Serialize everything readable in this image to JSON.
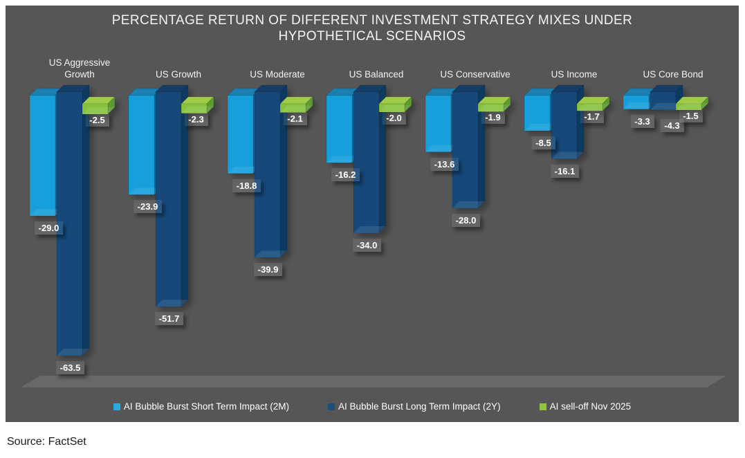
{
  "page": {
    "background": "#ffffff",
    "source_note": "Source: FactSet"
  },
  "panel": {
    "background": "#565656",
    "floor_color": "#686868"
  },
  "chart_data": {
    "type": "bar",
    "effect": "3d-clustered-column",
    "title": "PERCENTAGE RETURN OF DIFFERENT INVESTMENT STRATEGY MIXES UNDER HYPOTHETICAL SCENARIOS",
    "title_lines": [
      "PERCENTAGE RETURN OF DIFFERENT INVESTMENT STRATEGY MIXES UNDER",
      "HYPOTHETICAL SCENARIOS"
    ],
    "categories": [
      "US Aggressive Growth",
      "US Growth",
      "US Moderate",
      "US Balanced",
      "US Conservative",
      "US Income",
      "US Core Bond"
    ],
    "series": [
      {
        "name": "AI Bubble Burst Short Term Impact (2M)",
        "legend_color": "#2BA9E1",
        "face_colors": {
          "front": "#149FDB",
          "top": "#1B7FB1",
          "side": "#0E6CA0"
        },
        "values": [
          -29.0,
          -23.9,
          -18.8,
          -16.2,
          -13.6,
          -8.5,
          -3.3
        ]
      },
      {
        "name": "AI Bubble Burst Long Term Impact (2Y)",
        "legend_color": "#1F4E79",
        "face_colors": {
          "front": "#15497A",
          "top": "#123E66",
          "side": "#0D3A60"
        },
        "values": [
          -63.5,
          -51.7,
          -39.9,
          -34.0,
          -28.0,
          -16.1,
          -4.3
        ]
      },
      {
        "name": "AI sell-off Nov 2025",
        "legend_color": "#8CC63F",
        "face_colors": {
          "front": "#86C23D",
          "top": "#A0CB4A",
          "side": "#5C9B31"
        },
        "values": [
          -2.5,
          -2.3,
          -2.1,
          -2.0,
          -1.9,
          -1.7,
          -1.5
        ]
      }
    ],
    "value_labels_visible": true,
    "value_format": "one_decimal",
    "axes_visible": false,
    "gridlines": false,
    "legend_position": "bottom"
  }
}
